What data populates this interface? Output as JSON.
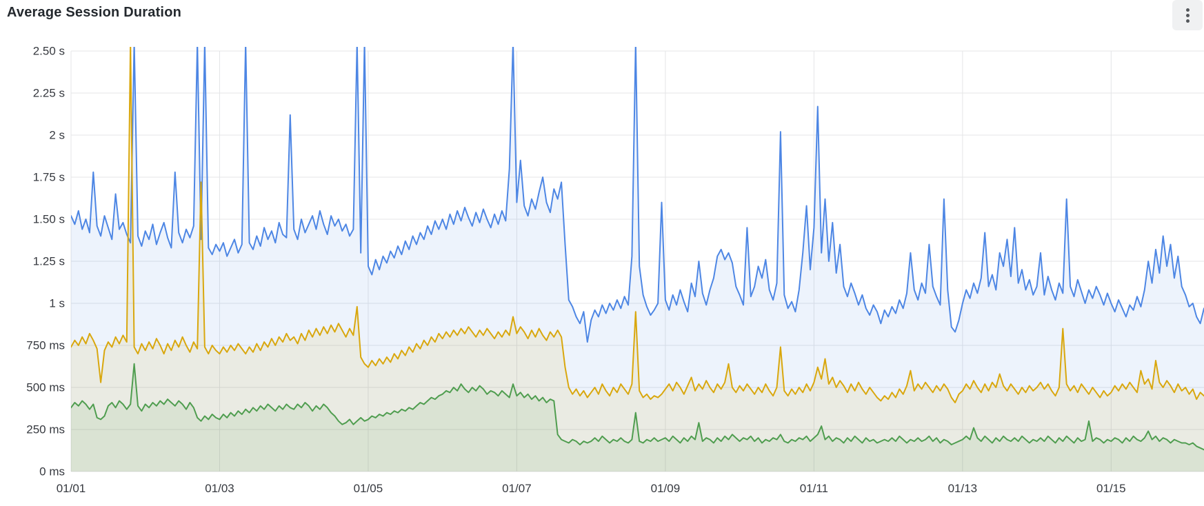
{
  "panel": {
    "title": "Average Session Duration",
    "menu_icon": "kebab-vertical"
  },
  "chart_data": {
    "type": "line",
    "title": "Average Session Duration",
    "legend": "none",
    "grid": true,
    "x_unit": "date (MM/DD), day 0 = 01/01",
    "x_start_day": 0,
    "x_step_day": 0.05,
    "x_range_days": [
      0,
      15.25
    ],
    "x_axis": {
      "tick_days": [
        0,
        2,
        4,
        6,
        8,
        10,
        12,
        14
      ],
      "tick_labels": [
        "01/01",
        "01/03",
        "01/05",
        "01/07",
        "01/09",
        "01/11",
        "01/13",
        "01/15"
      ]
    },
    "y_axis": {
      "min": 0,
      "max": 2.5,
      "tick_values": [
        0,
        0.25,
        0.5,
        0.75,
        1.0,
        1.25,
        1.5,
        1.75,
        2.0,
        2.25,
        2.5
      ],
      "tick_labels": [
        "0 ms",
        "250 ms",
        "500 ms",
        "750 ms",
        "1 s",
        "1.25 s",
        "1.50 s",
        "1.75 s",
        "2 s",
        "2.25 s",
        "2.50 s"
      ]
    },
    "clip_note": "values of 2.55 are spikes clipped at the top of the plot",
    "colors": {
      "blue": "#4d86e4",
      "yellow": "#d9a70d",
      "green": "#4f9d4f",
      "gridline": "#e4e5e7"
    },
    "fill_opacity": 0.1,
    "series": [
      {
        "name": "blue",
        "color": "#4d86e4",
        "values": [
          1.52,
          1.47,
          1.55,
          1.44,
          1.5,
          1.42,
          1.78,
          1.46,
          1.4,
          1.52,
          1.45,
          1.38,
          1.65,
          1.44,
          1.48,
          1.41,
          1.36,
          2.55,
          1.4,
          1.34,
          1.43,
          1.38,
          1.47,
          1.35,
          1.42,
          1.48,
          1.39,
          1.33,
          1.78,
          1.42,
          1.36,
          1.44,
          1.39,
          1.46,
          2.55,
          1.38,
          2.55,
          1.33,
          1.29,
          1.35,
          1.31,
          1.36,
          1.28,
          1.33,
          1.38,
          1.3,
          1.35,
          2.55,
          1.36,
          1.32,
          1.4,
          1.34,
          1.45,
          1.38,
          1.43,
          1.36,
          1.48,
          1.41,
          1.39,
          2.12,
          1.44,
          1.38,
          1.5,
          1.42,
          1.47,
          1.52,
          1.44,
          1.55,
          1.47,
          1.41,
          1.52,
          1.46,
          1.5,
          1.43,
          1.47,
          1.4,
          1.44,
          2.55,
          1.3,
          2.55,
          1.22,
          1.17,
          1.26,
          1.2,
          1.28,
          1.24,
          1.31,
          1.27,
          1.34,
          1.29,
          1.37,
          1.32,
          1.4,
          1.35,
          1.42,
          1.38,
          1.46,
          1.41,
          1.49,
          1.44,
          1.5,
          1.44,
          1.53,
          1.47,
          1.55,
          1.49,
          1.57,
          1.51,
          1.46,
          1.54,
          1.48,
          1.56,
          1.5,
          1.45,
          1.53,
          1.47,
          1.55,
          1.49,
          1.8,
          2.55,
          1.6,
          1.85,
          1.58,
          1.52,
          1.62,
          1.56,
          1.66,
          1.75,
          1.6,
          1.54,
          1.68,
          1.62,
          1.72,
          1.35,
          1.02,
          0.98,
          0.92,
          0.88,
          0.95,
          0.77,
          0.9,
          0.96,
          0.92,
          0.99,
          0.94,
          1.0,
          0.96,
          1.02,
          0.97,
          1.04,
          0.99,
          1.28,
          2.55,
          1.22,
          1.05,
          0.98,
          0.93,
          0.96,
          1.0,
          1.6,
          1.02,
          0.96,
          1.05,
          0.99,
          1.08,
          1.01,
          0.95,
          1.12,
          1.04,
          1.25,
          1.06,
          0.99,
          1.08,
          1.15,
          1.28,
          1.32,
          1.26,
          1.3,
          1.24,
          1.1,
          1.05,
          0.99,
          1.45,
          1.04,
          1.1,
          1.22,
          1.15,
          1.26,
          1.08,
          1.02,
          1.12,
          2.02,
          1.05,
          0.97,
          1.01,
          0.95,
          1.08,
          1.3,
          1.58,
          1.2,
          1.45,
          2.17,
          1.3,
          1.62,
          1.25,
          1.48,
          1.18,
          1.35,
          1.1,
          1.04,
          1.12,
          1.06,
          0.99,
          1.05,
          0.97,
          0.93,
          0.99,
          0.95,
          0.88,
          0.96,
          0.92,
          0.98,
          0.94,
          1.02,
          0.97,
          1.06,
          1.3,
          1.08,
          1.02,
          1.12,
          1.06,
          1.35,
          1.1,
          1.04,
          0.99,
          1.62,
          1.08,
          0.86,
          0.83,
          0.9,
          1.0,
          1.08,
          1.03,
          1.12,
          1.06,
          1.15,
          1.42,
          1.1,
          1.17,
          1.08,
          1.3,
          1.22,
          1.38,
          1.16,
          1.45,
          1.12,
          1.2,
          1.08,
          1.14,
          1.05,
          1.1,
          1.3,
          1.05,
          1.16,
          1.08,
          1.02,
          1.12,
          1.06,
          1.62,
          1.1,
          1.04,
          1.14,
          1.07,
          1.0,
          1.08,
          1.03,
          1.1,
          1.05,
          0.99,
          1.06,
          1.0,
          0.95,
          1.02,
          0.97,
          0.92,
          0.99,
          0.96,
          1.04,
          0.98,
          1.08,
          1.25,
          1.12,
          1.32,
          1.18,
          1.4,
          1.22,
          1.35,
          1.15,
          1.28,
          1.1,
          1.05,
          0.98,
          1.0,
          0.92,
          0.88,
          0.97
        ]
      },
      {
        "name": "yellow",
        "color": "#d9a70d",
        "values": [
          0.74,
          0.78,
          0.75,
          0.8,
          0.76,
          0.82,
          0.78,
          0.73,
          0.53,
          0.72,
          0.77,
          0.74,
          0.8,
          0.76,
          0.81,
          0.77,
          2.55,
          0.74,
          0.7,
          0.76,
          0.72,
          0.77,
          0.73,
          0.79,
          0.75,
          0.7,
          0.76,
          0.72,
          0.78,
          0.74,
          0.8,
          0.75,
          0.71,
          0.77,
          0.73,
          1.72,
          0.74,
          0.7,
          0.75,
          0.72,
          0.7,
          0.74,
          0.71,
          0.75,
          0.72,
          0.76,
          0.73,
          0.7,
          0.74,
          0.71,
          0.76,
          0.72,
          0.77,
          0.74,
          0.79,
          0.75,
          0.8,
          0.77,
          0.82,
          0.78,
          0.8,
          0.76,
          0.82,
          0.78,
          0.84,
          0.8,
          0.85,
          0.81,
          0.86,
          0.82,
          0.87,
          0.83,
          0.88,
          0.84,
          0.8,
          0.85,
          0.81,
          0.98,
          0.68,
          0.64,
          0.62,
          0.66,
          0.63,
          0.67,
          0.64,
          0.68,
          0.65,
          0.7,
          0.67,
          0.72,
          0.69,
          0.74,
          0.71,
          0.76,
          0.73,
          0.78,
          0.75,
          0.8,
          0.77,
          0.82,
          0.79,
          0.83,
          0.8,
          0.84,
          0.81,
          0.85,
          0.82,
          0.86,
          0.83,
          0.8,
          0.84,
          0.81,
          0.85,
          0.82,
          0.79,
          0.83,
          0.8,
          0.84,
          0.81,
          0.92,
          0.82,
          0.86,
          0.83,
          0.79,
          0.84,
          0.8,
          0.85,
          0.81,
          0.78,
          0.83,
          0.8,
          0.84,
          0.8,
          0.62,
          0.5,
          0.46,
          0.49,
          0.45,
          0.48,
          0.44,
          0.47,
          0.5,
          0.46,
          0.52,
          0.48,
          0.45,
          0.5,
          0.47,
          0.52,
          0.49,
          0.46,
          0.52,
          0.95,
          0.48,
          0.44,
          0.46,
          0.43,
          0.45,
          0.44,
          0.46,
          0.49,
          0.52,
          0.48,
          0.53,
          0.5,
          0.46,
          0.51,
          0.56,
          0.48,
          0.52,
          0.49,
          0.54,
          0.5,
          0.47,
          0.52,
          0.49,
          0.53,
          0.64,
          0.5,
          0.47,
          0.51,
          0.48,
          0.52,
          0.49,
          0.46,
          0.5,
          0.47,
          0.52,
          0.48,
          0.45,
          0.5,
          0.74,
          0.48,
          0.45,
          0.49,
          0.46,
          0.5,
          0.47,
          0.52,
          0.48,
          0.53,
          0.62,
          0.55,
          0.67,
          0.52,
          0.56,
          0.5,
          0.54,
          0.51,
          0.47,
          0.52,
          0.48,
          0.53,
          0.49,
          0.46,
          0.5,
          0.47,
          0.44,
          0.42,
          0.45,
          0.43,
          0.47,
          0.44,
          0.49,
          0.46,
          0.51,
          0.6,
          0.48,
          0.52,
          0.49,
          0.53,
          0.5,
          0.47,
          0.51,
          0.48,
          0.52,
          0.49,
          0.44,
          0.41,
          0.46,
          0.48,
          0.52,
          0.49,
          0.54,
          0.5,
          0.47,
          0.52,
          0.48,
          0.53,
          0.5,
          0.58,
          0.51,
          0.48,
          0.52,
          0.49,
          0.46,
          0.5,
          0.47,
          0.51,
          0.48,
          0.5,
          0.53,
          0.49,
          0.52,
          0.48,
          0.45,
          0.5,
          0.85,
          0.52,
          0.48,
          0.51,
          0.47,
          0.52,
          0.49,
          0.46,
          0.5,
          0.47,
          0.44,
          0.48,
          0.45,
          0.47,
          0.51,
          0.48,
          0.52,
          0.49,
          0.53,
          0.5,
          0.47,
          0.6,
          0.52,
          0.55,
          0.49,
          0.66,
          0.53,
          0.5,
          0.54,
          0.51,
          0.47,
          0.52,
          0.48,
          0.5,
          0.46,
          0.49,
          0.43,
          0.47,
          0.45
        ]
      },
      {
        "name": "green",
        "color": "#4f9d4f",
        "values": [
          0.38,
          0.41,
          0.39,
          0.42,
          0.4,
          0.37,
          0.4,
          0.32,
          0.31,
          0.33,
          0.39,
          0.41,
          0.38,
          0.42,
          0.4,
          0.37,
          0.4,
          0.64,
          0.39,
          0.36,
          0.4,
          0.38,
          0.41,
          0.39,
          0.42,
          0.4,
          0.43,
          0.41,
          0.39,
          0.42,
          0.4,
          0.37,
          0.41,
          0.38,
          0.32,
          0.3,
          0.33,
          0.31,
          0.34,
          0.32,
          0.31,
          0.34,
          0.32,
          0.35,
          0.33,
          0.36,
          0.34,
          0.37,
          0.35,
          0.38,
          0.36,
          0.39,
          0.37,
          0.4,
          0.38,
          0.36,
          0.39,
          0.37,
          0.4,
          0.38,
          0.37,
          0.4,
          0.38,
          0.41,
          0.39,
          0.36,
          0.39,
          0.37,
          0.4,
          0.38,
          0.35,
          0.33,
          0.3,
          0.28,
          0.29,
          0.31,
          0.28,
          0.3,
          0.32,
          0.3,
          0.31,
          0.33,
          0.32,
          0.34,
          0.33,
          0.35,
          0.34,
          0.36,
          0.35,
          0.37,
          0.36,
          0.38,
          0.37,
          0.39,
          0.41,
          0.4,
          0.42,
          0.44,
          0.43,
          0.45,
          0.46,
          0.48,
          0.47,
          0.5,
          0.48,
          0.52,
          0.49,
          0.47,
          0.5,
          0.48,
          0.51,
          0.49,
          0.46,
          0.48,
          0.47,
          0.45,
          0.48,
          0.46,
          0.44,
          0.52,
          0.45,
          0.47,
          0.44,
          0.46,
          0.43,
          0.45,
          0.42,
          0.44,
          0.41,
          0.43,
          0.42,
          0.22,
          0.19,
          0.18,
          0.17,
          0.19,
          0.18,
          0.16,
          0.18,
          0.17,
          0.18,
          0.2,
          0.18,
          0.21,
          0.19,
          0.17,
          0.19,
          0.18,
          0.2,
          0.18,
          0.17,
          0.19,
          0.35,
          0.18,
          0.17,
          0.19,
          0.18,
          0.2,
          0.18,
          0.19,
          0.2,
          0.18,
          0.21,
          0.19,
          0.17,
          0.2,
          0.18,
          0.21,
          0.19,
          0.29,
          0.18,
          0.2,
          0.19,
          0.17,
          0.2,
          0.18,
          0.21,
          0.19,
          0.22,
          0.2,
          0.18,
          0.2,
          0.19,
          0.21,
          0.18,
          0.2,
          0.17,
          0.19,
          0.18,
          0.2,
          0.19,
          0.22,
          0.18,
          0.17,
          0.19,
          0.18,
          0.2,
          0.19,
          0.21,
          0.18,
          0.2,
          0.22,
          0.27,
          0.19,
          0.21,
          0.18,
          0.2,
          0.19,
          0.17,
          0.2,
          0.18,
          0.21,
          0.19,
          0.17,
          0.2,
          0.18,
          0.19,
          0.17,
          0.18,
          0.19,
          0.18,
          0.2,
          0.18,
          0.21,
          0.19,
          0.17,
          0.19,
          0.18,
          0.2,
          0.18,
          0.19,
          0.21,
          0.18,
          0.2,
          0.17,
          0.19,
          0.18,
          0.16,
          0.17,
          0.18,
          0.19,
          0.21,
          0.19,
          0.26,
          0.2,
          0.18,
          0.21,
          0.19,
          0.17,
          0.2,
          0.18,
          0.21,
          0.19,
          0.18,
          0.2,
          0.18,
          0.21,
          0.19,
          0.17,
          0.19,
          0.18,
          0.2,
          0.18,
          0.21,
          0.19,
          0.17,
          0.2,
          0.18,
          0.21,
          0.19,
          0.17,
          0.2,
          0.18,
          0.19,
          0.3,
          0.18,
          0.2,
          0.19,
          0.17,
          0.19,
          0.18,
          0.2,
          0.19,
          0.17,
          0.2,
          0.18,
          0.21,
          0.19,
          0.18,
          0.2,
          0.24,
          0.19,
          0.21,
          0.18,
          0.2,
          0.19,
          0.17,
          0.19,
          0.18,
          0.17,
          0.17,
          0.16,
          0.17,
          0.15,
          0.14,
          0.13
        ]
      }
    ]
  }
}
